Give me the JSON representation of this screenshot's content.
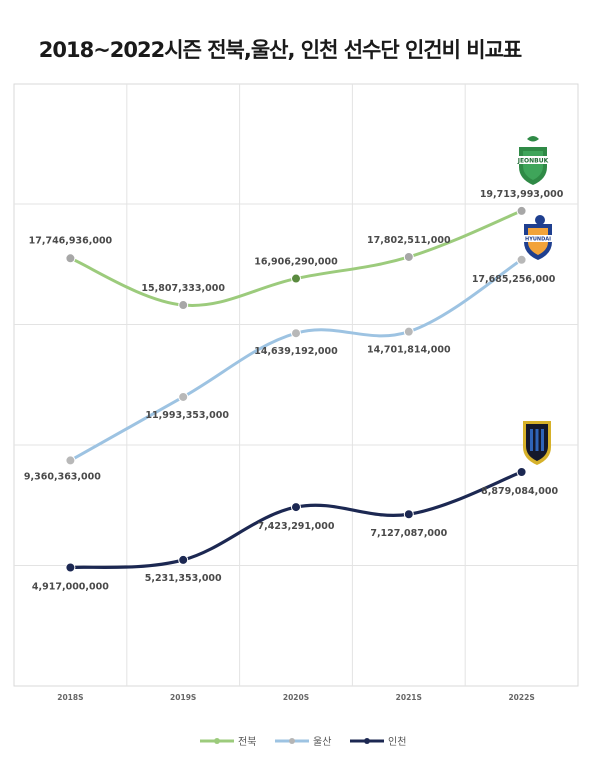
{
  "title": "2018~2022시즌 전북,울산, 인천 선수단 인건비 비교표",
  "logos": {
    "jeonbuk_text": "JEONBUK",
    "ulsan_text": "HYUNDAI"
  },
  "chart_data": {
    "type": "line",
    "categories": [
      "2018S",
      "2019S",
      "2020S",
      "2021S",
      "2022S"
    ],
    "series": [
      {
        "name": "전북",
        "color": "#9ccb7c",
        "values": [
          17746936000,
          15807333000,
          16906290000,
          17802511000,
          19713993000
        ],
        "labels": [
          "17,746,936,000",
          "15,807,333,000",
          "16,906,290,000",
          "17,802,511,000",
          "19,713,993,000"
        ]
      },
      {
        "name": "울산",
        "color": "#9dc3e2",
        "values": [
          9360363000,
          11993353000,
          14639192000,
          14701814000,
          17685256000
        ],
        "labels": [
          "9,360,363,000",
          "11,993,353,000",
          "14,639,192,000",
          "14,701,814,000",
          "17,685,256,000"
        ]
      },
      {
        "name": "인천",
        "color": "#1c2852",
        "values": [
          4917000000,
          5231353000,
          7423291000,
          7127087000,
          8879084000
        ],
        "labels": [
          "4,917,000,000",
          "5,231,353,000",
          "7,423,291,000",
          "7,127,087,000",
          "8,879,084,000"
        ]
      }
    ],
    "grid": true,
    "legend": "bottom-center"
  }
}
